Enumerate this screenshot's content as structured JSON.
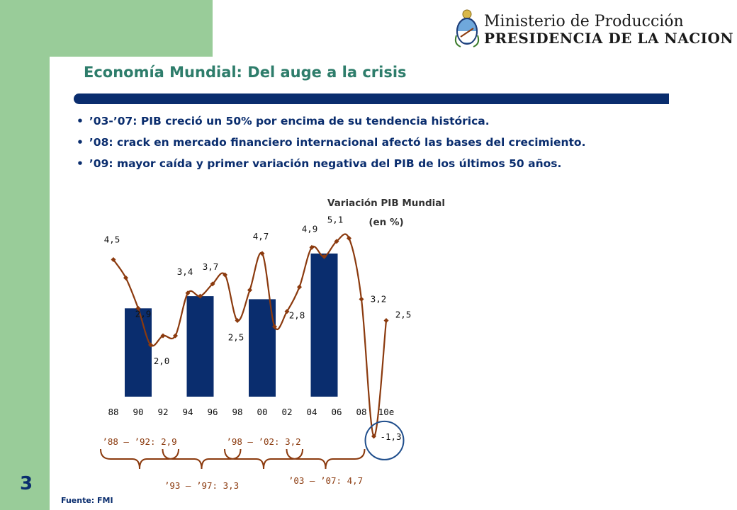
{
  "header": {
    "ministry": "Ministerio de Producción",
    "presidency": "PRESIDENCIA DE LA NACION"
  },
  "page_number": "3",
  "title": "Economía Mundial: Del auge a la crisis",
  "bullets": [
    "’03-’07: PIB creció un 50% por encima de su tendencia histórica.",
    "’08: crack en mercado financiero internacional afectó las bases del crecimiento.",
    "’09: mayor caída y primer variación negativa del PIB de los últimos 50 años."
  ],
  "source": "Fuente: FMI",
  "colors": {
    "navy": "#0a2d6e",
    "line": "#8b3a0e",
    "green": "#99cc99",
    "title_green": "#2e7d6b"
  },
  "chart_data": {
    "type": "bar+line",
    "title": "Variación PIB Mundial",
    "subtitle": "(en %)",
    "x_ticks": [
      "88",
      "90",
      "92",
      "94",
      "96",
      "98",
      "00",
      "02",
      "04",
      "06",
      "08",
      "10e"
    ],
    "ylim": [
      -1.5,
      5.5
    ],
    "line": {
      "x": [
        1988,
        1989,
        1990,
        1991,
        1992,
        1993,
        1994,
        1995,
        1996,
        1997,
        1998,
        1999,
        2000,
        2001,
        2002,
        2003,
        2004,
        2005,
        2006,
        2007,
        2008,
        2009,
        2010
      ],
      "values": [
        4.5,
        3.9,
        2.9,
        1.7,
        2.0,
        2.0,
        3.4,
        3.3,
        3.7,
        4.0,
        2.5,
        3.5,
        4.7,
        2.3,
        2.8,
        3.6,
        4.9,
        4.6,
        5.1,
        5.2,
        3.2,
        -1.3,
        2.5
      ],
      "labels": [
        {
          "x": 1988,
          "text": "4,5"
        },
        {
          "x": 1990,
          "text": "2,9"
        },
        {
          "x": 1992,
          "text": "2,0"
        },
        {
          "x": 1994,
          "text": "3,4"
        },
        {
          "x": 1996,
          "text": "3,7"
        },
        {
          "x": 1998,
          "text": "2,5"
        },
        {
          "x": 2000,
          "text": "4,7"
        },
        {
          "x": 2002,
          "text": "2,8"
        },
        {
          "x": 2004,
          "text": "4,9"
        },
        {
          "x": 2006,
          "text": "5,1"
        },
        {
          "x": 2008,
          "text": "3,2"
        },
        {
          "x": 2009,
          "text": "-1,3"
        },
        {
          "x": 2010,
          "text": "2,5"
        }
      ]
    },
    "bars": [
      {
        "label": "’88 – ’92: 2,9",
        "value": 2.9,
        "x_start": 1988,
        "x_end": 1992
      },
      {
        "label": "’93 – ’97: 3,3",
        "value": 3.3,
        "x_start": 1993,
        "x_end": 1997
      },
      {
        "label": "’98 – ’02: 3,2",
        "value": 3.2,
        "x_start": 1998,
        "x_end": 2002
      },
      {
        "label": "’03 – ’07: 4,7",
        "value": 4.7,
        "x_start": 2003,
        "x_end": 2007
      }
    ],
    "grid": false,
    "highlight": {
      "x": 2009,
      "shape": "circle"
    }
  }
}
